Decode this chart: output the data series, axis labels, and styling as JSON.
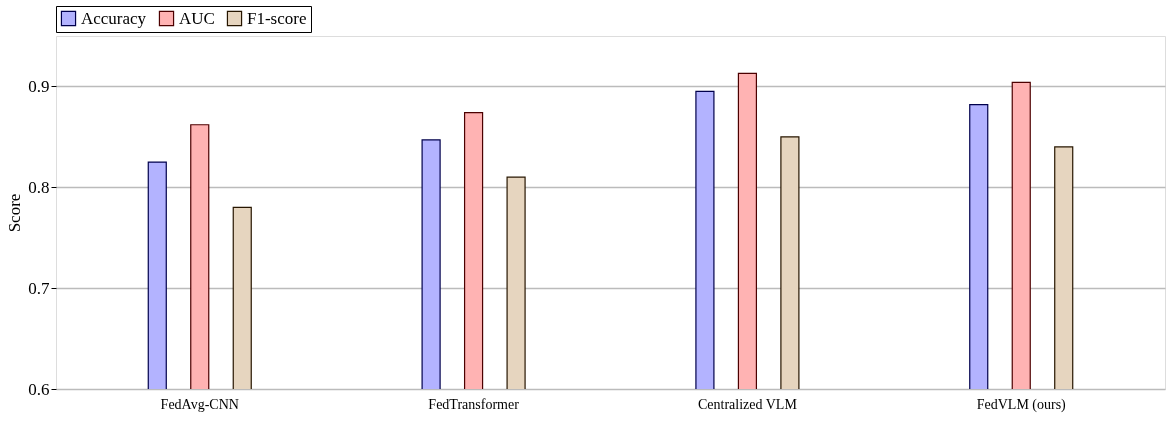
{
  "chart_data": {
    "type": "bar",
    "ylabel": "Score",
    "categories": [
      "FedAvg-CNN",
      "FedTransformer",
      "Centralized VLM",
      "FedVLM (ours)"
    ],
    "series": [
      {
        "name": "Accuracy",
        "color": "#b3b3ff",
        "values": [
          0.825,
          0.847,
          0.895,
          0.882
        ]
      },
      {
        "name": "AUC",
        "color": "#ffb3b3",
        "values": [
          0.862,
          0.874,
          0.913,
          0.904
        ]
      },
      {
        "name": "F1-score",
        "color": "#e6d5bf",
        "values": [
          0.78,
          0.81,
          0.85,
          0.84
        ]
      }
    ],
    "ylim": [
      0.6,
      0.95
    ],
    "yticks": [
      0.6,
      0.7,
      0.8,
      0.9
    ],
    "grid": "y",
    "legend": "top"
  }
}
